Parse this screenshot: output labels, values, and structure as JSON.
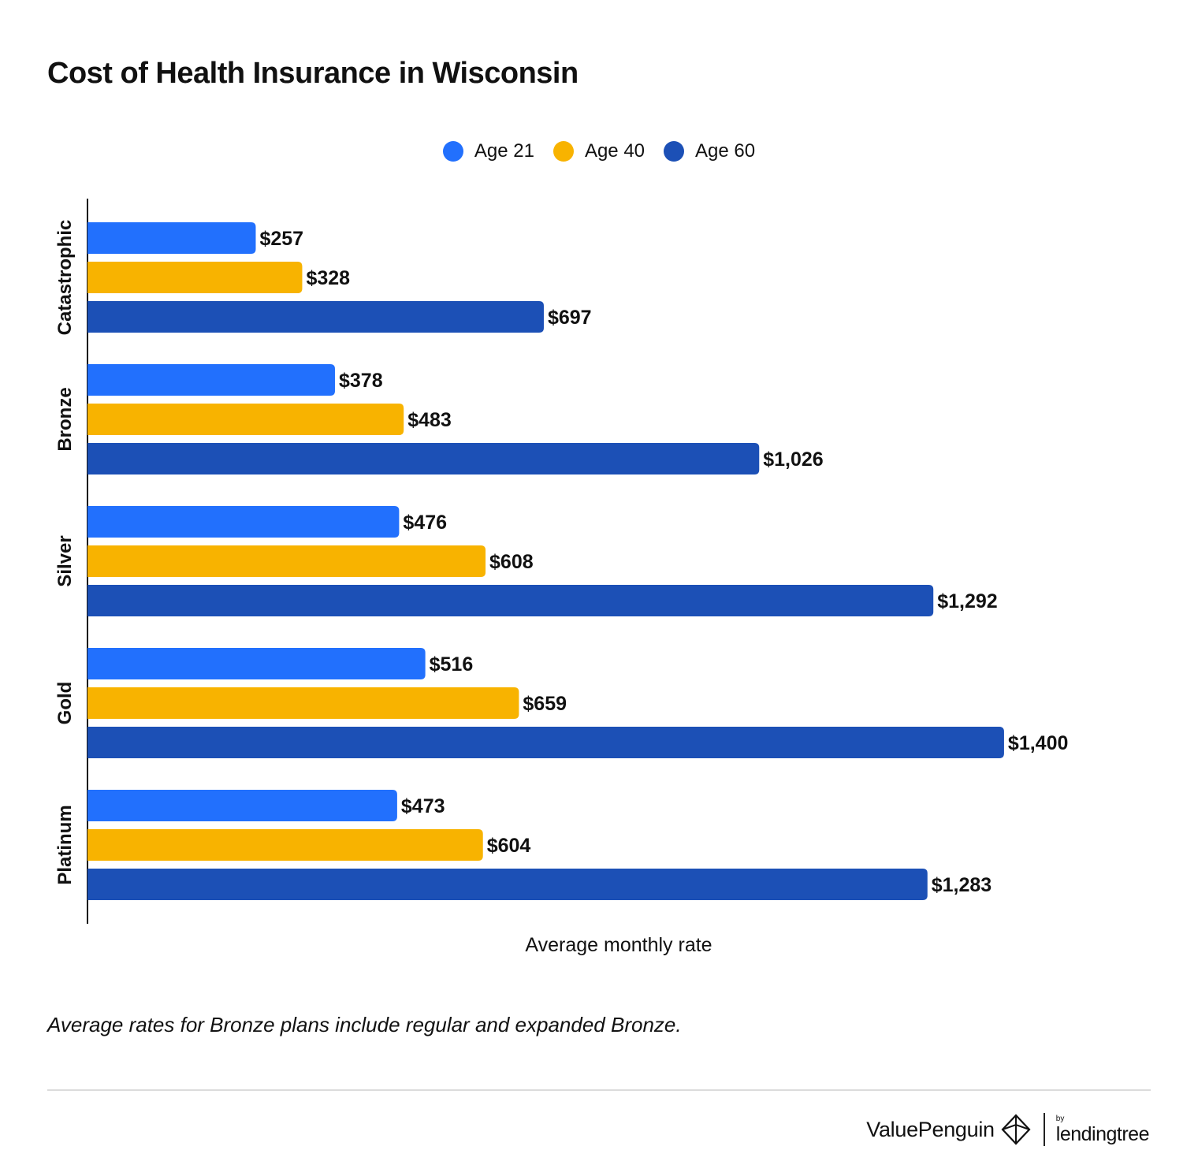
{
  "chart_data": {
    "type": "bar",
    "orientation": "horizontal",
    "title": "Cost of Health Insurance in Wisconsin",
    "categories": [
      "Catastrophic",
      "Bronze",
      "Silver",
      "Gold",
      "Platinum"
    ],
    "series": [
      {
        "name": "Age 21",
        "color": "#2270FD",
        "values": [
          257,
          378,
          476,
          516,
          473
        ],
        "labels": [
          "$257",
          "$378",
          "$476",
          "$516",
          "$473"
        ]
      },
      {
        "name": "Age 40",
        "color": "#F8B300",
        "values": [
          328,
          483,
          608,
          659,
          604
        ],
        "labels": [
          "$328",
          "$483",
          "$608",
          "$659",
          "$604"
        ]
      },
      {
        "name": "Age 60",
        "color": "#1C50B6",
        "values": [
          697,
          1026,
          1292,
          1400,
          1283
        ],
        "labels": [
          "$697",
          "$1,026",
          "$1,292",
          "$1,400",
          "$1,283"
        ]
      }
    ],
    "xlabel": "Average monthly rate",
    "ylabel": "",
    "xlim": [
      0,
      1624
    ],
    "grid": false,
    "legend_position": "top-center"
  },
  "footnote": "Average rates for Bronze plans include regular and expanded Bronze.",
  "brand": {
    "valuepenguin": "ValuePenguin",
    "by": "by",
    "lendingtree": "lendingtree"
  }
}
